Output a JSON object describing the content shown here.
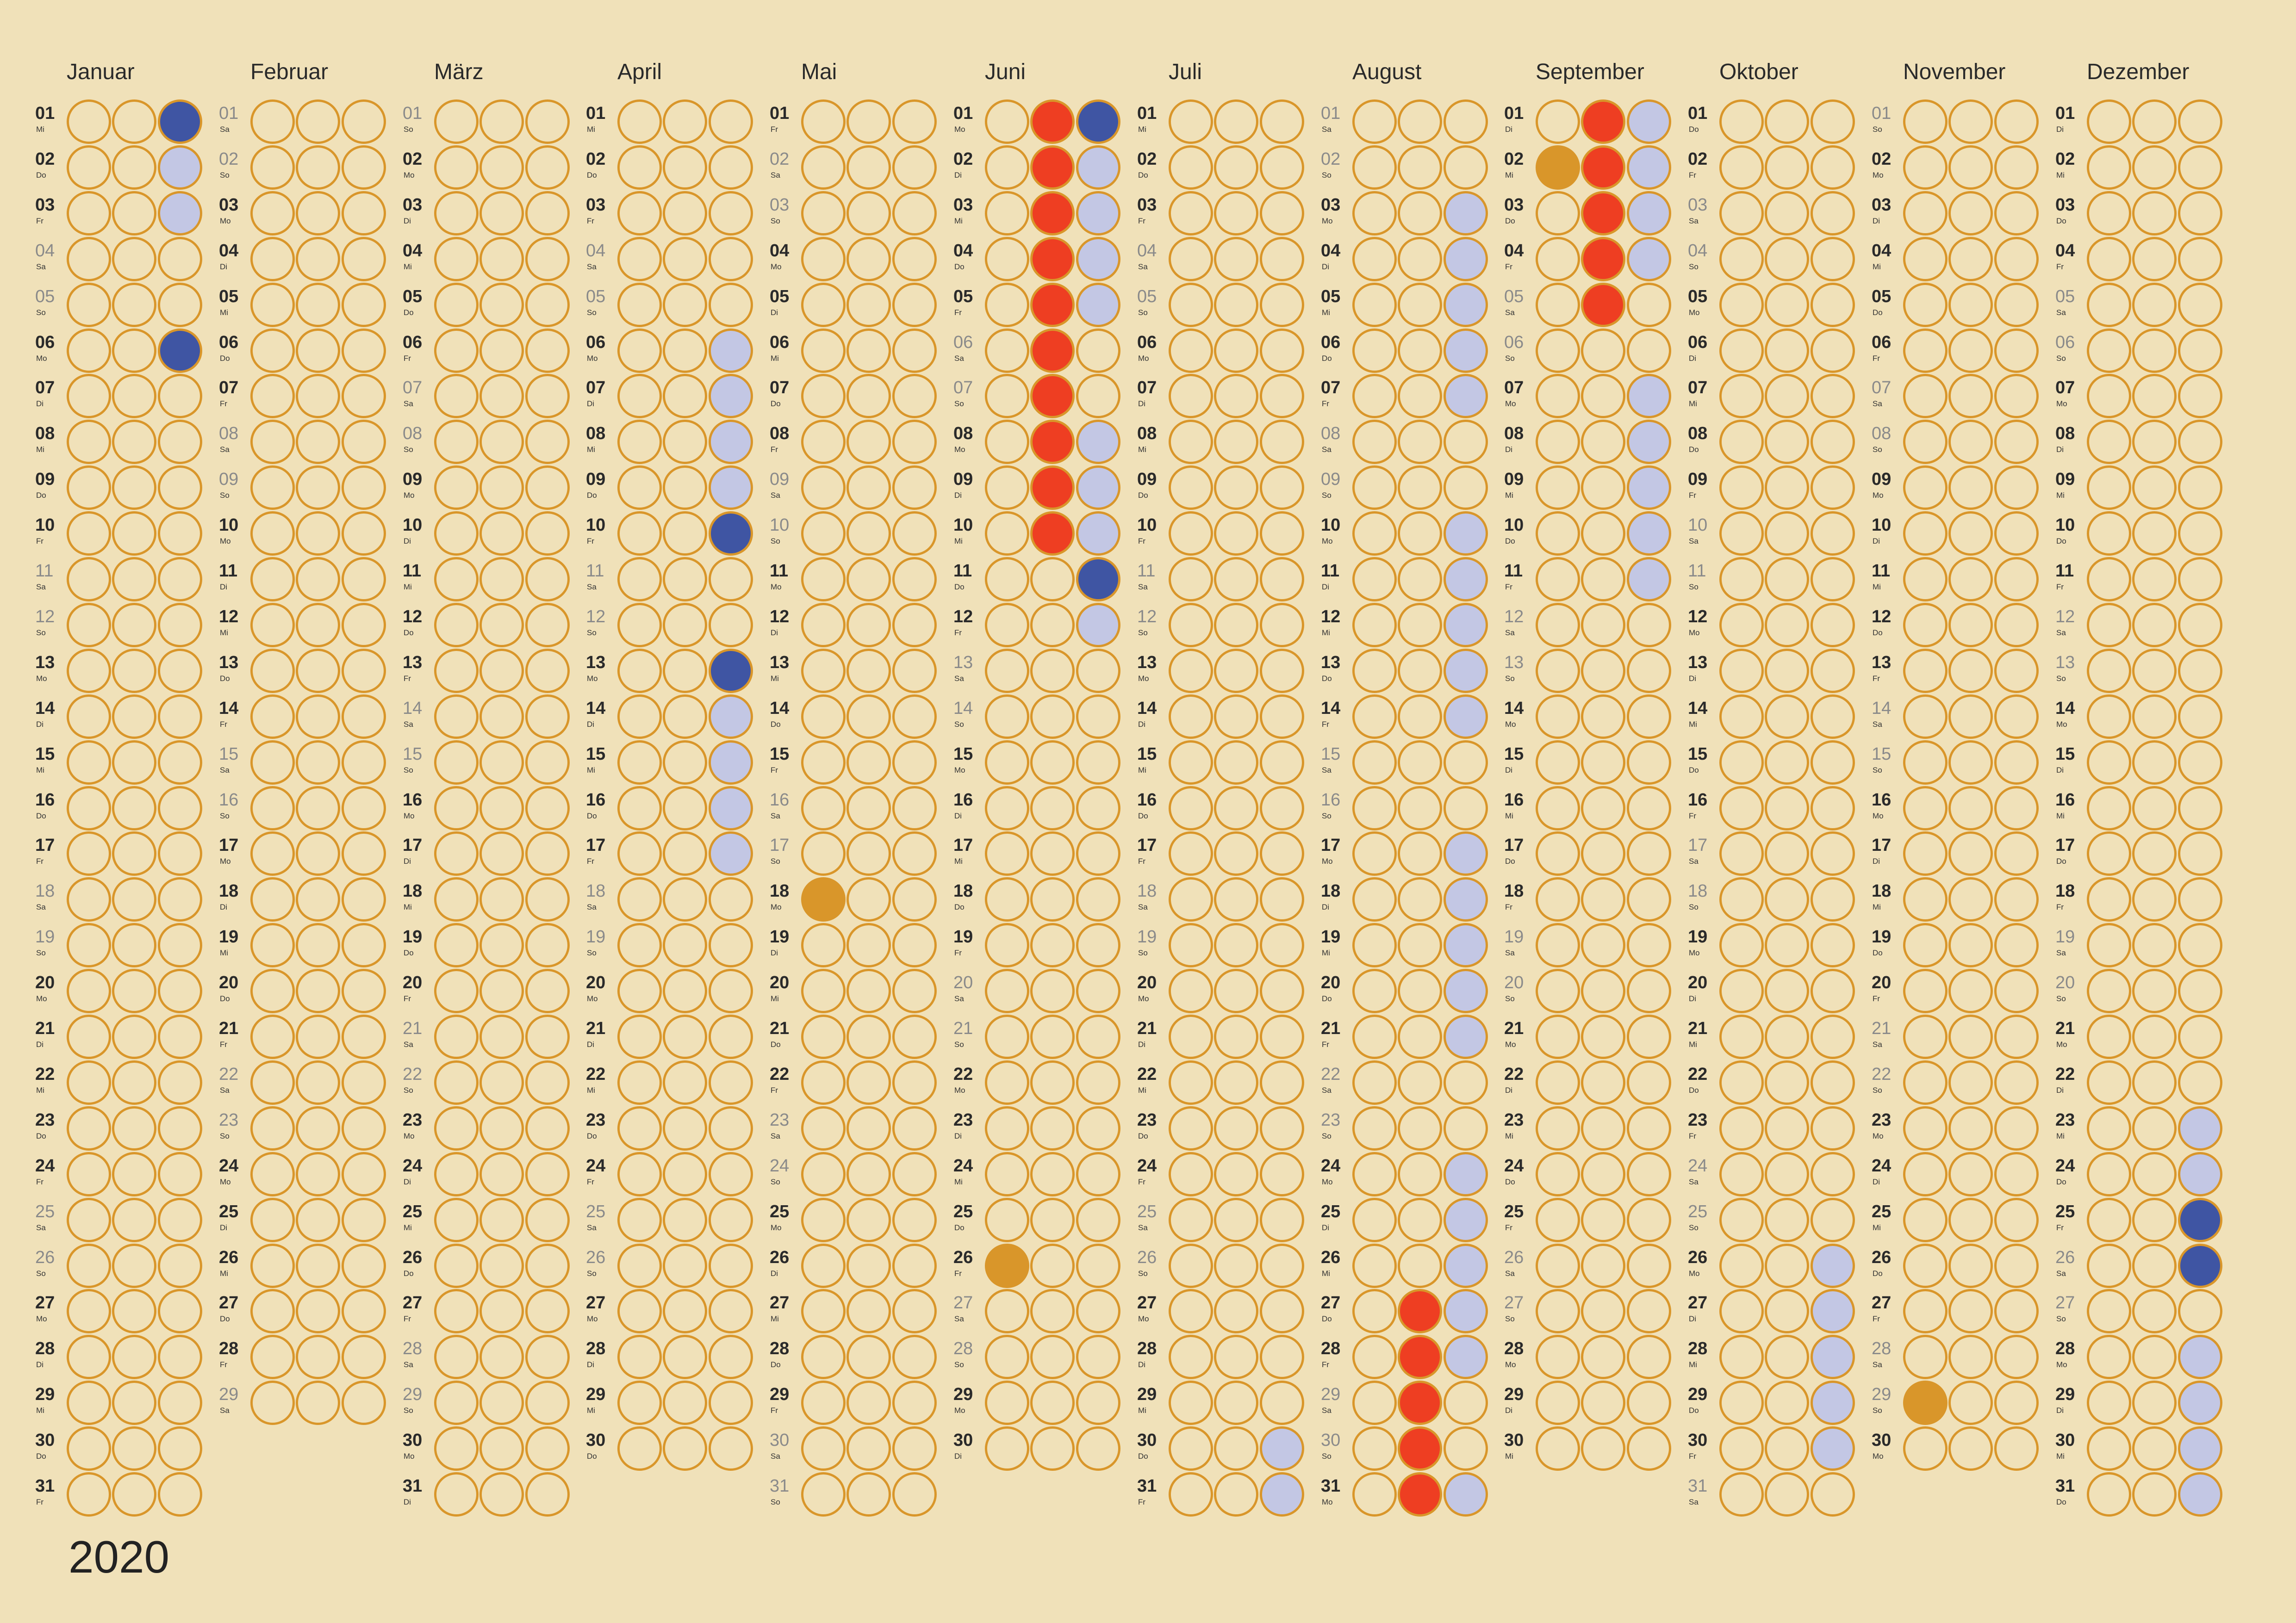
{
  "year": "2020",
  "colors": {
    "background": "#f0e1b9",
    "outline": "#d9962a",
    "light_blue": "#c3c7e4",
    "dark_blue": "#3f55a3",
    "red": "#ee3e22",
    "orange": "#d9962a"
  },
  "months": [
    {
      "name": "Januar",
      "weekdays": [
        "Mi",
        "Do",
        "Fr",
        "Sa",
        "So",
        "Mo",
        "Di",
        "Mi",
        "Do",
        "Fr",
        "Sa",
        "So",
        "Mo",
        "Di",
        "Mi",
        "Do",
        "Fr",
        "Sa",
        "So",
        "Mo",
        "Di",
        "Mi",
        "Do",
        "Fr",
        "Sa",
        "So",
        "Mo",
        "Di",
        "Mi",
        "Do",
        "Fr"
      ]
    },
    {
      "name": "Februar",
      "weekdays": [
        "Sa",
        "So",
        "Mo",
        "Di",
        "Mi",
        "Do",
        "Fr",
        "Sa",
        "So",
        "Mo",
        "Di",
        "Mi",
        "Do",
        "Fr",
        "Sa",
        "So",
        "Mo",
        "Di",
        "Mi",
        "Do",
        "Fr",
        "Sa",
        "So",
        "Mo",
        "Di",
        "Mi",
        "Do",
        "Fr",
        "Sa"
      ]
    },
    {
      "name": "März",
      "weekdays": [
        "So",
        "Mo",
        "Di",
        "Mi",
        "Do",
        "Fr",
        "Sa",
        "So",
        "Mo",
        "Di",
        "Mi",
        "Do",
        "Fr",
        "Sa",
        "So",
        "Mo",
        "Di",
        "Mi",
        "Do",
        "Fr",
        "Sa",
        "So",
        "Mo",
        "Di",
        "Mi",
        "Do",
        "Fr",
        "Sa",
        "So",
        "Mo",
        "Di"
      ]
    },
    {
      "name": "April",
      "weekdays": [
        "Mi",
        "Do",
        "Fr",
        "Sa",
        "So",
        "Mo",
        "Di",
        "Mi",
        "Do",
        "Fr",
        "Sa",
        "So",
        "Mo",
        "Di",
        "Mi",
        "Do",
        "Fr",
        "Sa",
        "So",
        "Mo",
        "Di",
        "Mi",
        "Do",
        "Fr",
        "Sa",
        "So",
        "Mo",
        "Di",
        "Mi",
        "Do"
      ]
    },
    {
      "name": "Mai",
      "weekdays": [
        "Fr",
        "Sa",
        "So",
        "Mo",
        "Di",
        "Mi",
        "Do",
        "Fr",
        "Sa",
        "So",
        "Mo",
        "Di",
        "Mi",
        "Do",
        "Fr",
        "Sa",
        "So",
        "Mo",
        "Di",
        "Mi",
        "Do",
        "Fr",
        "Sa",
        "So",
        "Mo",
        "Di",
        "Mi",
        "Do",
        "Fr",
        "Sa",
        "So"
      ]
    },
    {
      "name": "Juni",
      "weekdays": [
        "Mo",
        "Di",
        "Mi",
        "Do",
        "Fr",
        "Sa",
        "So",
        "Mo",
        "Di",
        "Mi",
        "Do",
        "Fr",
        "Sa",
        "So",
        "Mo",
        "Di",
        "Mi",
        "Do",
        "Fr",
        "Sa",
        "So",
        "Mo",
        "Di",
        "Mi",
        "Do",
        "Fr",
        "Sa",
        "So",
        "Mo",
        "Di"
      ]
    },
    {
      "name": "Juli",
      "weekdays": [
        "Mi",
        "Do",
        "Fr",
        "Sa",
        "So",
        "Mo",
        "Di",
        "Mi",
        "Do",
        "Fr",
        "Sa",
        "So",
        "Mo",
        "Di",
        "Mi",
        "Do",
        "Fr",
        "Sa",
        "So",
        "Mo",
        "Di",
        "Mi",
        "Do",
        "Fr",
        "Sa",
        "So",
        "Mo",
        "Di",
        "Mi",
        "Do",
        "Fr"
      ]
    },
    {
      "name": "August",
      "weekdays": [
        "Sa",
        "So",
        "Mo",
        "Di",
        "Mi",
        "Do",
        "Fr",
        "Sa",
        "So",
        "Mo",
        "Di",
        "Mi",
        "Do",
        "Fr",
        "Sa",
        "So",
        "Mo",
        "Di",
        "Mi",
        "Do",
        "Fr",
        "Sa",
        "So",
        "Mo",
        "Di",
        "Mi",
        "Do",
        "Fr",
        "Sa",
        "So",
        "Mo"
      ]
    },
    {
      "name": "September",
      "weekdays": [
        "Di",
        "Mi",
        "Do",
        "Fr",
        "Sa",
        "So",
        "Mo",
        "Di",
        "Mi",
        "Do",
        "Fr",
        "Sa",
        "So",
        "Mo",
        "Di",
        "Mi",
        "Do",
        "Fr",
        "Sa",
        "So",
        "Mo",
        "Di",
        "Mi",
        "Do",
        "Fr",
        "Sa",
        "So",
        "Mo",
        "Di",
        "Mi"
      ]
    },
    {
      "name": "Oktober",
      "weekdays": [
        "Do",
        "Fr",
        "Sa",
        "So",
        "Mo",
        "Di",
        "Mi",
        "Do",
        "Fr",
        "Sa",
        "So",
        "Mo",
        "Di",
        "Mi",
        "Do",
        "Fr",
        "Sa",
        "So",
        "Mo",
        "Di",
        "Mi",
        "Do",
        "Fr",
        "Sa",
        "So",
        "Mo",
        "Di",
        "Mi",
        "Do",
        "Fr",
        "Sa"
      ]
    },
    {
      "name": "November",
      "weekdays": [
        "So",
        "Mo",
        "Di",
        "Mi",
        "Do",
        "Fr",
        "Sa",
        "So",
        "Mo",
        "Di",
        "Mi",
        "Do",
        "Fr",
        "Sa",
        "So",
        "Mo",
        "Di",
        "Mi",
        "Do",
        "Fr",
        "Sa",
        "So",
        "Mo",
        "Di",
        "Mi",
        "Do",
        "Fr",
        "Sa",
        "So",
        "Mo"
      ]
    },
    {
      "name": "Dezember",
      "weekdays": [
        "Di",
        "Mi",
        "Do",
        "Fr",
        "Sa",
        "So",
        "Mo",
        "Di",
        "Mi",
        "Do",
        "Fr",
        "Sa",
        "So",
        "Mo",
        "Di",
        "Mi",
        "Do",
        "Fr",
        "Sa",
        "So",
        "Mo",
        "Di",
        "Mi",
        "Do",
        "Fr",
        "Sa",
        "So",
        "Mo",
        "Di",
        "Mi",
        "Do"
      ]
    }
  ],
  "marks": [
    {
      "month": 1,
      "days": [
        1,
        6
      ],
      "column": 3,
      "color": "dark_blue"
    },
    {
      "month": 1,
      "days": [
        2,
        3
      ],
      "column": 3,
      "color": "light_blue"
    },
    {
      "month": 4,
      "days": [
        6,
        7,
        8,
        9,
        14,
        15,
        16,
        17
      ],
      "column": 3,
      "color": "light_blue"
    },
    {
      "month": 4,
      "days": [
        10,
        13
      ],
      "column": 3,
      "color": "dark_blue"
    },
    {
      "month": 5,
      "days": [
        18
      ],
      "column": 1,
      "color": "orange"
    },
    {
      "month": 6,
      "days": [
        1,
        2,
        3,
        4,
        5,
        6,
        7,
        8,
        9,
        10
      ],
      "column": 2,
      "color": "red"
    },
    {
      "month": 6,
      "days": [
        1,
        11
      ],
      "column": 3,
      "color": "dark_blue"
    },
    {
      "month": 6,
      "days": [
        2,
        3,
        4,
        5,
        8,
        9,
        10,
        12
      ],
      "column": 3,
      "color": "light_blue"
    },
    {
      "month": 6,
      "days": [
        26
      ],
      "column": 1,
      "color": "orange"
    },
    {
      "month": 7,
      "days": [
        30,
        31
      ],
      "column": 3,
      "color": "light_blue"
    },
    {
      "month": 8,
      "days": [
        3,
        4,
        5,
        6,
        7,
        10,
        11,
        12,
        13,
        14,
        17,
        18,
        19,
        20,
        21,
        24,
        25,
        26,
        27,
        28,
        31
      ],
      "column": 3,
      "color": "light_blue"
    },
    {
      "month": 8,
      "days": [
        27,
        28,
        29,
        30,
        31
      ],
      "column": 2,
      "color": "red"
    },
    {
      "month": 9,
      "days": [
        1,
        2,
        3,
        4,
        5
      ],
      "column": 2,
      "color": "red"
    },
    {
      "month": 9,
      "days": [
        2
      ],
      "column": 1,
      "color": "orange"
    },
    {
      "month": 9,
      "days": [
        1,
        2,
        3,
        4,
        7,
        8,
        9,
        10,
        11
      ],
      "column": 3,
      "color": "light_blue"
    },
    {
      "month": 10,
      "days": [
        26,
        27,
        28,
        29,
        30
      ],
      "column": 3,
      "color": "light_blue"
    },
    {
      "month": 11,
      "days": [
        29
      ],
      "column": 1,
      "color": "orange"
    },
    {
      "month": 12,
      "days": [
        23,
        24,
        28,
        29,
        30,
        31
      ],
      "column": 3,
      "color": "light_blue"
    },
    {
      "month": 12,
      "days": [
        25,
        26
      ],
      "column": 3,
      "color": "dark_blue"
    }
  ]
}
